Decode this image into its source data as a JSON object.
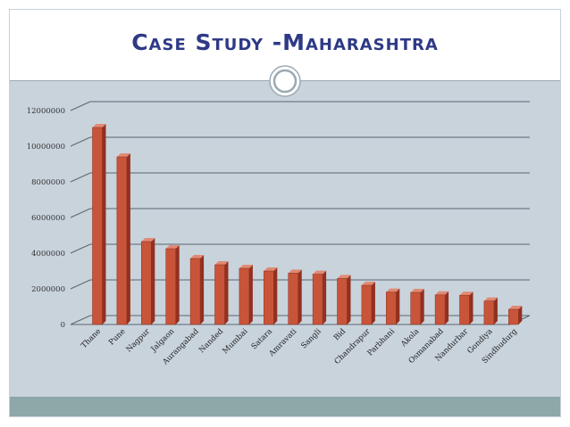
{
  "slide": {
    "title": "Case Study -Maharashtra"
  },
  "colors": {
    "bar_front": "#c8553a",
    "bar_side": "#93301f",
    "bar_top": "#e08a74",
    "title": "#2e3a86",
    "content_bg": "#c9d3dc",
    "footer_bg": "#8ea7a8"
  },
  "chart_data": {
    "type": "bar",
    "title": "",
    "xlabel": "",
    "ylabel": "",
    "ylim": [
      0,
      12000000
    ],
    "yticks": [
      "0",
      "2000000",
      "4000000",
      "6000000",
      "8000000",
      "10000000",
      "12000000"
    ],
    "grid": true,
    "categories": [
      "Thane",
      "Pune",
      "Nagpur",
      "Jalgaon",
      "Aurangabad",
      "Nanded",
      "Mumbai",
      "Satara",
      "Amravati",
      "Sangli",
      "Bid",
      "Chandrapur",
      "Parbhani",
      "Akola",
      "Osmanabad",
      "Nandurbar",
      "Gondiya",
      "Sindhudurg"
    ],
    "values": [
      11050000,
      9400000,
      4650000,
      4250000,
      3700000,
      3350000,
      3150000,
      3000000,
      2880000,
      2820000,
      2580000,
      2200000,
      1820000,
      1800000,
      1660000,
      1640000,
      1320000,
      850000
    ]
  }
}
